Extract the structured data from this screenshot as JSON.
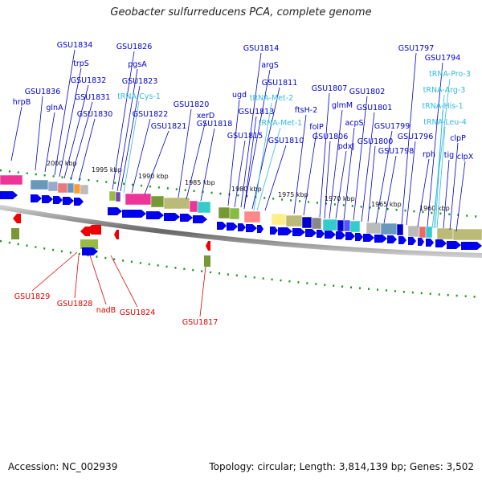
{
  "title": "Geobacter sulfurreducens PCA, complete genome",
  "footer": {
    "accession": "Accession: NC_002939",
    "summary": "Topology: circular; Length: 3,814,139 bp; Genes: 3,502"
  },
  "colors": {
    "forward_label": "#0000cc",
    "rna_label": "#33bbdd",
    "reverse_label": "#dd0000",
    "forward_arrow": "#0000ee",
    "reverse_arrow": "#ee0000",
    "backbone": "#777777",
    "tick": "#119911"
  },
  "scale_labels": [
    "2000 kbp",
    "1995 kbp",
    "1990 kbp",
    "1985 kbp",
    "1980 kbp",
    "1975 kbp",
    "1970 kbp",
    "1965 kbp",
    "1960 kbp"
  ],
  "forward_genes": [
    "hrpB",
    "GSU1836",
    "glnA",
    "GSU1834",
    "trpS",
    "GSU1832",
    "GSU1831",
    "GSU1830",
    "GSU1826",
    "pgsA",
    "GSU1823",
    "tRNA-Cys-1",
    "GSU1822",
    "GSU1821",
    "GSU1820",
    "xerD",
    "GSU1818",
    "ugd",
    "GSU1815",
    "GSU1814",
    "argS",
    "GSU1813",
    "GSU1811",
    "tRNA-Met-2",
    "tRNA-Met-1",
    "GSU1810",
    "ftsH-2",
    "folP",
    "GSU1807",
    "GSU1806",
    "glmM",
    "pdxJ",
    "acpS",
    "GSU1802",
    "GSU1801",
    "GSU1800",
    "GSU1799",
    "GSU1798",
    "GSU1797",
    "GSU1796",
    "GSU1794",
    "rph",
    "tRNA-Pro-3",
    "tRNA-Arg-3",
    "tRNA-His-1",
    "tRNA-Leu-4",
    "tig",
    "clpP",
    "clpX"
  ],
  "reverse_genes": [
    "GSU1829",
    "GSU1828",
    "nadB",
    "GSU1824",
    "GSU1817"
  ]
}
